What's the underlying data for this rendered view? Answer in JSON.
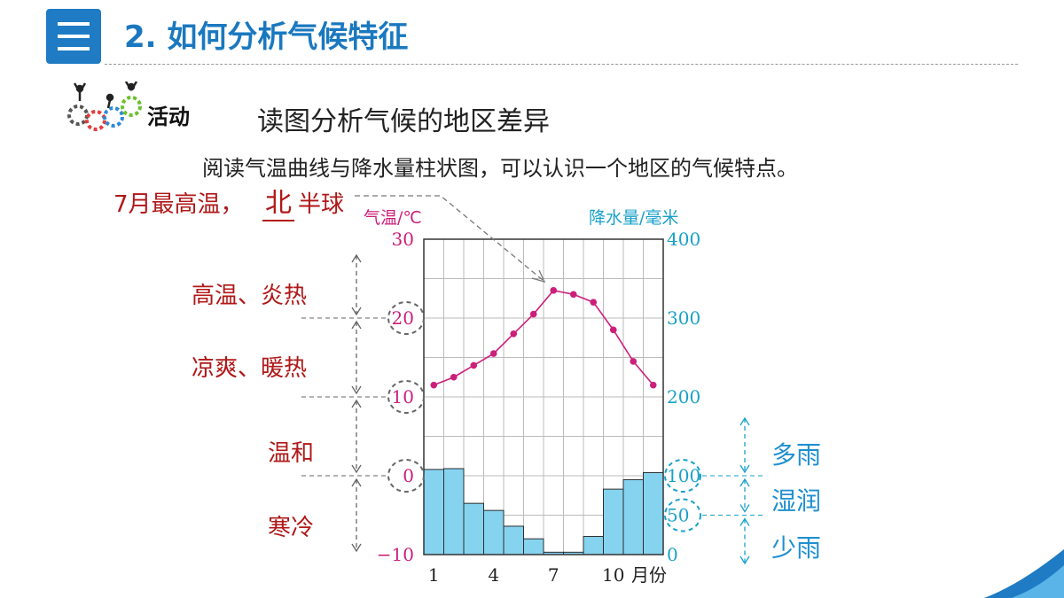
{
  "header": {
    "number_title": "2. 如何分析气候特征",
    "icon": "list-icon"
  },
  "activity": {
    "label": "活动",
    "icon": "gears-people-icon",
    "title": "读图分析气候的地区差异",
    "description": "阅读气温曲线与降水量柱状图，可以认识一个地区的气候特点。"
  },
  "annotations": {
    "hemisphere_prefix": "7月最高温，",
    "hemisphere_answer": "北",
    "hemisphere_suffix": "半球",
    "temp_bands": [
      "高温、炎热",
      "凉爽、暖热",
      "温和",
      "寒冷"
    ],
    "rain_bands": [
      "多雨",
      "湿润",
      "少雨"
    ]
  },
  "colors": {
    "accent": "#1e7bc4",
    "temp": "#cc1f7a",
    "precip_axis": "#1aa1c9",
    "bar": "#86d3f0",
    "annotation_red": "#b01818",
    "annotation_blue": "#1f8fd0"
  },
  "chart_data": {
    "type": "bar+line",
    "x": [
      1,
      2,
      3,
      4,
      5,
      6,
      7,
      8,
      9,
      10,
      11,
      12
    ],
    "x_tick_labels": [
      "1",
      "4",
      "7",
      "10"
    ],
    "x_unit_label": "月份",
    "temperature": {
      "label": "气温/℃",
      "values": [
        11.5,
        12.5,
        14,
        15.5,
        18,
        20.5,
        23.5,
        23,
        22,
        18.5,
        14.5,
        11.5
      ],
      "ylim": [
        -10,
        30
      ],
      "ticks": [
        "30",
        "20",
        "10",
        "0",
        "−10"
      ]
    },
    "precipitation": {
      "label": "降水量/毫米",
      "values": [
        108,
        109,
        65,
        56,
        36,
        20,
        3,
        3,
        23,
        83,
        95,
        104
      ],
      "ylim": [
        0,
        400
      ],
      "ticks": [
        "400",
        "300",
        "200",
        "100",
        "50",
        "0"
      ]
    }
  }
}
